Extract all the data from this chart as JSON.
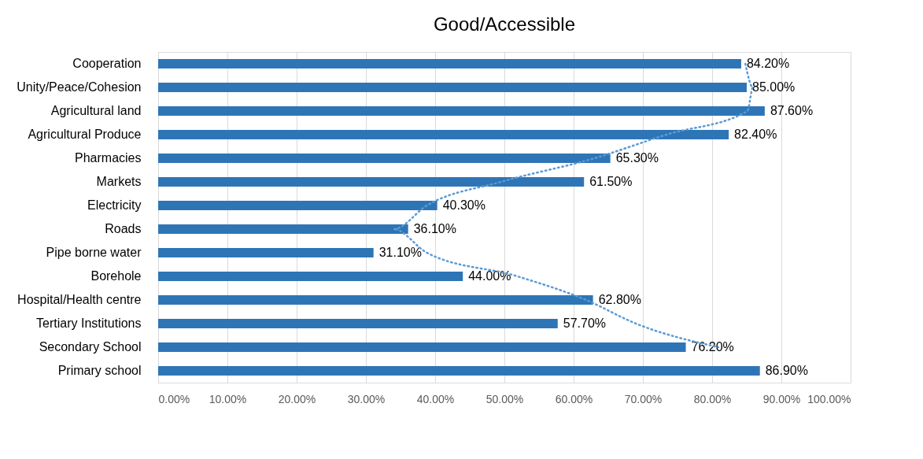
{
  "chart_data": {
    "type": "bar",
    "orientation": "horizontal",
    "title": "Good/Accessible",
    "categories": [
      "Cooperation",
      "Unity/Peace/Cohesion",
      "Agricultural land",
      "Agricultural Produce",
      "Pharmacies",
      "Markets",
      "Electricity",
      "Roads",
      "Pipe borne water",
      "Borehole",
      "Hospital/Health centre",
      "Tertiary Institutions",
      "Secondary School",
      "Primary school"
    ],
    "series": [
      {
        "color": "#2e75b6",
        "values": [
          84.2,
          85.0,
          87.6,
          82.4,
          65.3,
          61.5,
          40.3,
          36.1,
          31.1,
          44.0,
          62.8,
          57.7,
          76.2,
          86.9
        ],
        "value_labels": [
          "84.20%",
          "85.00%",
          "87.60%",
          "82.40%",
          "65.30%",
          "61.50%",
          "40.30%",
          "36.10%",
          "31.10%",
          "44.00%",
          "62.80%",
          "57.70%",
          "76.20%",
          "86.90%"
        ]
      },
      {
        "type": "line",
        "color": "#5b9bd5",
        "line_style": "dotted",
        "values": [
          84.8,
          85.9,
          85.1,
          73.4,
          63.0,
          49.5,
          38.8,
          34.0,
          38.8,
          51.9,
          61.8,
          69.0,
          80.9,
          null
        ]
      }
    ],
    "xlim": [
      0,
      100
    ],
    "xticks": [
      {
        "value": 0,
        "label": "0.00%"
      },
      {
        "value": 10,
        "label": "10.00%"
      },
      {
        "value": 20,
        "label": "20.00%"
      },
      {
        "value": 30,
        "label": "30.00%"
      },
      {
        "value": 40,
        "label": "40.00%"
      },
      {
        "value": 50,
        "label": "50.00%"
      },
      {
        "value": 60,
        "label": "60.00%"
      },
      {
        "value": 70,
        "label": "70.00%"
      },
      {
        "value": 80,
        "label": "80.00%"
      },
      {
        "value": 90,
        "label": "90.00%"
      },
      {
        "value": 100,
        "label": "100.00%"
      }
    ],
    "grid": "x"
  }
}
